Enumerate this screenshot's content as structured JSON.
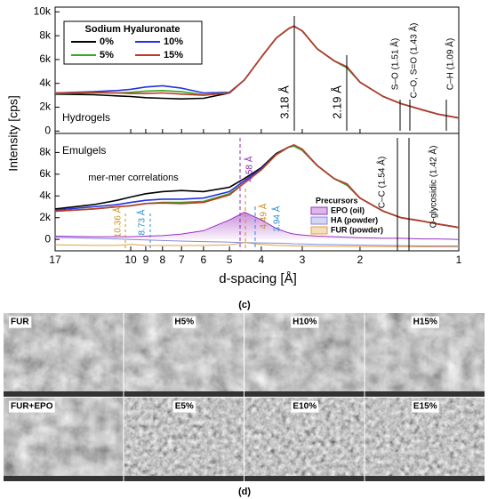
{
  "chart_data": [
    {
      "type": "line",
      "panel_label": "Hydrogels",
      "ylabel": "Intensity [cps]",
      "legend_title": "Sodium Hyaluronate",
      "x": [
        17,
        13,
        11,
        10,
        9,
        8,
        7,
        6,
        5,
        4.5,
        4,
        3.6,
        3.3,
        3.18,
        3,
        2.7,
        2.4,
        2.19,
        2,
        1.7,
        1.5,
        1.3,
        1.15,
        1
      ],
      "xlim": [
        17,
        1
      ],
      "xscale": "log",
      "ylim": [
        -200,
        10400
      ],
      "yticks": [
        0,
        {
          "value": 2000,
          "label": "2k"
        },
        {
          "value": 4000,
          "label": "4k"
        },
        {
          "value": 6000,
          "label": "6k"
        },
        {
          "value": 8000,
          "label": "8k"
        },
        {
          "value": 10000,
          "label": "10k"
        }
      ],
      "series": [
        {
          "name": "0%",
          "color": "#000000",
          "values": [
            3100,
            3050,
            2950,
            2900,
            2800,
            2750,
            2700,
            2750,
            3200,
            4300,
            6200,
            7800,
            8600,
            8800,
            8400,
            6900,
            5900,
            5300,
            4100,
            2900,
            2300,
            1800,
            1400,
            1100
          ]
        },
        {
          "name": "10%",
          "color": "#2233dd",
          "values": [
            3200,
            3300,
            3400,
            3500,
            3700,
            3800,
            3600,
            3200,
            3250,
            4300,
            6200,
            7800,
            8600,
            8800,
            8400,
            6900,
            5900,
            5300,
            4100,
            2900,
            2300,
            1800,
            1400,
            1100
          ]
        },
        {
          "name": "5%",
          "color": "#33aa22",
          "values": [
            3150,
            3200,
            3200,
            3250,
            3350,
            3400,
            3300,
            3050,
            3200,
            4300,
            6200,
            7800,
            8600,
            8800,
            8400,
            6900,
            5900,
            5300,
            4100,
            2900,
            2300,
            1800,
            1400,
            1100
          ]
        },
        {
          "name": "15%",
          "color": "#c0392b",
          "values": [
            3200,
            3250,
            3200,
            3150,
            3150,
            3200,
            3100,
            3000,
            3200,
            4300,
            6200,
            7800,
            8600,
            8800,
            8400,
            6900,
            5900,
            5400,
            4100,
            2900,
            2300,
            1800,
            1400,
            1100
          ]
        }
      ],
      "annotations": [
        "3.18 Å",
        "2.19 Å",
        "S–O (1.51 Å)",
        "C–O, S=O (1.43 Å)",
        "C–H (1.09 Å)"
      ]
    },
    {
      "type": "line",
      "panel_label": "Emulgels",
      "xlabel": "d-spacing [Å]",
      "x": [
        17,
        13,
        11,
        10,
        9,
        8,
        7,
        6,
        5,
        4.5,
        4,
        3.6,
        3.3,
        3.18,
        3,
        2.7,
        2.4,
        2.19,
        2,
        1.7,
        1.5,
        1.3,
        1.15,
        1
      ],
      "xlim": [
        17,
        1
      ],
      "xscale": "log",
      "xticks": [
        17,
        10,
        9,
        8,
        7,
        6,
        5,
        4,
        3,
        2,
        1
      ],
      "ylim": [
        -1050,
        9750
      ],
      "yticks": [
        0,
        {
          "value": 2000,
          "label": "2k"
        },
        {
          "value": 4000,
          "label": "4k"
        },
        {
          "value": 6000,
          "label": "6k"
        },
        {
          "value": 8000,
          "label": "8k"
        }
      ],
      "series": [
        {
          "name": "0%",
          "color": "#000000",
          "values": [
            2800,
            3200,
            3600,
            3900,
            4200,
            4400,
            4500,
            4400,
            4800,
            5600,
            6600,
            7900,
            8500,
            8600,
            8200,
            6800,
            5600,
            5000,
            3800,
            2600,
            2000,
            1700,
            1400,
            1100
          ]
        },
        {
          "name": "10%",
          "color": "#2233dd",
          "values": [
            2700,
            3000,
            3200,
            3400,
            3600,
            3700,
            3700,
            3800,
            4400,
            5400,
            6500,
            7800,
            8500,
            8600,
            8200,
            6800,
            5600,
            5000,
            3800,
            2600,
            2000,
            1700,
            1400,
            1100
          ]
        },
        {
          "name": "5%",
          "color": "#33aa22",
          "values": [
            2600,
            2800,
            3000,
            3100,
            3300,
            3400,
            3400,
            3500,
            4200,
            5200,
            6400,
            7800,
            8500,
            8600,
            8200,
            6800,
            5600,
            5000,
            3800,
            2600,
            2000,
            1700,
            1400,
            1100
          ]
        },
        {
          "name": "15%",
          "color": "#c0392b",
          "values": [
            2600,
            2800,
            3000,
            3100,
            3300,
            3350,
            3300,
            3400,
            4100,
            5200,
            6400,
            7800,
            8500,
            8700,
            8300,
            6800,
            5600,
            5100,
            3800,
            2600,
            2000,
            1700,
            1400,
            1100
          ]
        }
      ],
      "precursor_legend_title": "Precursors",
      "precursor_series": [
        {
          "name": "EPO (oil)",
          "color": "#9b30c0",
          "values": [
            300,
            250,
            250,
            250,
            300,
            350,
            500,
            800,
            1800,
            2500,
            1800,
            1000,
            600,
            500,
            400,
            300,
            250,
            200,
            150,
            100,
            100,
            50,
            50,
            0
          ]
        },
        {
          "name": "HA  (powder)",
          "color": "#8888e0",
          "values": [
            200,
            100,
            50,
            0,
            -50,
            -100,
            -150,
            -200,
            -250,
            -300,
            -320,
            -350,
            -380,
            -400,
            -420,
            -450,
            -480,
            -500,
            -520,
            -550,
            -570,
            -590,
            -600,
            -600
          ]
        },
        {
          "name": "FUR  (powder)",
          "color": "#e0a040",
          "values": [
            -500,
            -550,
            -550,
            -450,
            -550,
            -560,
            -560,
            -560,
            -500,
            -300,
            -450,
            -550,
            -580,
            -600,
            -600,
            -620,
            -630,
            -640,
            -650,
            -660,
            -670,
            -680,
            -690,
            -700
          ]
        }
      ],
      "annotations": [
        "4.58 Å",
        "4.49 Å",
        "3.94 Å",
        "10.36 Å",
        "8.73 Å",
        "C–C (1.54 Å)",
        "O-glycosidic (1.42 Å)",
        "mer-mer correlations"
      ]
    }
  ],
  "figure": {
    "caption_c": "(c)",
    "caption_d": "(d)",
    "micrographs": [
      "FUR",
      "H5%",
      "H10%",
      "H15%",
      "FUR+EPO",
      "E5%",
      "E10%",
      "E15%"
    ]
  }
}
